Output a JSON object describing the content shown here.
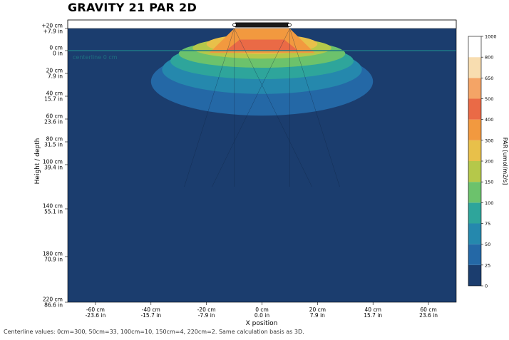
{
  "title": "GRAVITY 21 PAR 2D",
  "footnote": "Centerline values: 0cm=300, 50cm=33, 100cm=10, 150cm=4, 220cm=2. Same calculation basis as 3D.",
  "chart_data": {
    "type": "heatmap",
    "title": "GRAVITY 21 PAR 2D",
    "xlabel": "X position",
    "ylabel": "Height / depth",
    "xlim": [
      -70,
      70
    ],
    "ylim": [
      220,
      -20
    ],
    "x_ticks": [
      {
        "value": -60,
        "cm": "-60 cm",
        "in": "-23.6 in"
      },
      {
        "value": -40,
        "cm": "-40 cm",
        "in": "-15.7 in"
      },
      {
        "value": -20,
        "cm": "-20 cm",
        "in": "-7.9 in"
      },
      {
        "value": 0,
        "cm": "0 cm",
        "in": "0.0 in"
      },
      {
        "value": 20,
        "cm": "20 cm",
        "in": "7.9 in"
      },
      {
        "value": 40,
        "cm": "40 cm",
        "in": "15.7 in"
      },
      {
        "value": 60,
        "cm": "60 cm",
        "in": "23.6 in"
      }
    ],
    "y_ticks": [
      {
        "value": -20,
        "cm": "+20 cm",
        "in": "+7.9 in"
      },
      {
        "value": 0,
        "cm": "0 cm",
        "in": "0 in"
      },
      {
        "value": 20,
        "cm": "20 cm",
        "in": "7.9 in"
      },
      {
        "value": 40,
        "cm": "40 cm",
        "in": "15.7 in"
      },
      {
        "value": 60,
        "cm": "60 cm",
        "in": "23.6 in"
      },
      {
        "value": 80,
        "cm": "80 cm",
        "in": "31.5 in"
      },
      {
        "value": 100,
        "cm": "100 cm",
        "in": "39.4 in"
      },
      {
        "value": 140,
        "cm": "140 cm",
        "in": "55.1 in"
      },
      {
        "value": 180,
        "cm": "180 cm",
        "in": "70.9 in"
      },
      {
        "value": 220,
        "cm": "220 cm",
        "in": "86.6 in"
      }
    ],
    "colorbar": {
      "label": "PAR [umol/m2/s]",
      "levels": [
        0,
        25,
        50,
        75,
        100,
        150,
        200,
        300,
        400,
        500,
        650,
        800,
        1000
      ],
      "colors": [
        "#1b3d6e",
        "#2468a6",
        "#2588ad",
        "#2ea59b",
        "#6cc26c",
        "#b5c84a",
        "#e8c04a",
        "#f2993f",
        "#ea6a46",
        "#f4a466",
        "#f8ddb0",
        "#ffffff"
      ]
    },
    "centerline_label": "centerline 0 cm",
    "centerline_values": [
      {
        "depth_cm": 0,
        "par": 300
      },
      {
        "depth_cm": 50,
        "par": 33
      },
      {
        "depth_cm": 100,
        "par": 10
      },
      {
        "depth_cm": 150,
        "par": 4
      },
      {
        "depth_cm": 220,
        "par": 2
      }
    ],
    "fixture_emitters_cm": [
      -10,
      10
    ],
    "grid": false,
    "legend": "right colorbar"
  }
}
